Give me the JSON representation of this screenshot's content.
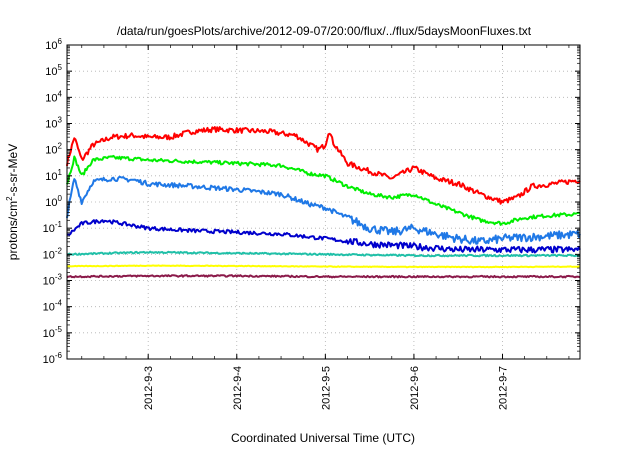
{
  "chart_data": {
    "type": "line",
    "title": "/data/run/goesPlots/archive/2012-09-07/20:00/flux/../flux/5daysMoonFluxes.txt",
    "xlabel": "Coordinated Universal Time (UTC)",
    "ylabel": {
      "base": "protons/cm",
      "sup": "2",
      "rest": "-s-sr-MeV"
    },
    "yscale": "log",
    "ylim_exp": [
      -6,
      6
    ],
    "ytick_exps": [
      -6,
      -5,
      -4,
      -3,
      -2,
      -1,
      0,
      1,
      2,
      3,
      4,
      5,
      6
    ],
    "xlim": [
      "2012-09-02T02:00",
      "2012-09-07T21:00"
    ],
    "xticks": [
      {
        "t": "2012-09-03T00:00",
        "label": "2012-9-3"
      },
      {
        "t": "2012-09-04T00:00",
        "label": "2012-9-4"
      },
      {
        "t": "2012-09-05T00:00",
        "label": "2012-9-5"
      },
      {
        "t": "2012-09-06T00:00",
        "label": "2012-9-6"
      },
      {
        "t": "2012-09-07T00:00",
        "label": "2012-9-7"
      }
    ],
    "grid": true,
    "series": [
      {
        "color": "#ff0000",
        "points": [
          [
            "2012-09-02T02:00",
            30
          ],
          [
            "2012-09-02T04:00",
            300
          ],
          [
            "2012-09-02T06:00",
            40
          ],
          [
            "2012-09-02T09:00",
            150
          ],
          [
            "2012-09-02T14:00",
            300
          ],
          [
            "2012-09-02T20:00",
            350
          ],
          [
            "2012-09-03T00:00",
            300
          ],
          [
            "2012-09-03T06:00",
            300
          ],
          [
            "2012-09-03T12:00",
            500
          ],
          [
            "2012-09-03T18:00",
            600
          ],
          [
            "2012-09-04T00:00",
            550
          ],
          [
            "2012-09-04T08:00",
            500
          ],
          [
            "2012-09-04T16:00",
            350
          ],
          [
            "2012-09-04T22:00",
            100
          ],
          [
            "2012-09-05T00:00",
            150
          ],
          [
            "2012-09-05T01:00",
            600
          ],
          [
            "2012-09-05T02:00",
            200
          ],
          [
            "2012-09-05T06:00",
            30
          ],
          [
            "2012-09-05T12:00",
            15
          ],
          [
            "2012-09-05T18:00",
            8
          ],
          [
            "2012-09-06T00:00",
            20
          ],
          [
            "2012-09-06T06:00",
            8
          ],
          [
            "2012-09-06T12:00",
            5
          ],
          [
            "2012-09-06T18:00",
            2
          ],
          [
            "2012-09-07T00:00",
            1
          ],
          [
            "2012-09-07T04:00",
            1.5
          ],
          [
            "2012-09-07T08:00",
            4
          ],
          [
            "2012-09-07T14:00",
            5
          ],
          [
            "2012-09-07T21:00",
            7
          ]
        ]
      },
      {
        "color": "#00ee00",
        "points": [
          [
            "2012-09-02T02:00",
            5
          ],
          [
            "2012-09-02T04:00",
            50
          ],
          [
            "2012-09-02T06:00",
            10
          ],
          [
            "2012-09-02T09:00",
            40
          ],
          [
            "2012-09-02T14:00",
            50
          ],
          [
            "2012-09-02T20:00",
            45
          ],
          [
            "2012-09-03T00:00",
            40
          ],
          [
            "2012-09-03T12:00",
            35
          ],
          [
            "2012-09-04T00:00",
            30
          ],
          [
            "2012-09-04T12:00",
            25
          ],
          [
            "2012-09-04T20:00",
            12
          ],
          [
            "2012-09-05T00:00",
            10
          ],
          [
            "2012-09-05T06:00",
            4
          ],
          [
            "2012-09-05T12:00",
            2
          ],
          [
            "2012-09-05T18:00",
            1.5
          ],
          [
            "2012-09-06T00:00",
            2
          ],
          [
            "2012-09-06T06:00",
            0.8
          ],
          [
            "2012-09-06T12:00",
            0.4
          ],
          [
            "2012-09-06T18:00",
            0.2
          ],
          [
            "2012-09-07T00:00",
            0.15
          ],
          [
            "2012-09-07T06:00",
            0.25
          ],
          [
            "2012-09-07T12:00",
            0.3
          ],
          [
            "2012-09-07T21:00",
            0.35
          ]
        ]
      },
      {
        "color": "#1f78e6",
        "points": [
          [
            "2012-09-02T02:00",
            0.3
          ],
          [
            "2012-09-02T04:00",
            8
          ],
          [
            "2012-09-02T06:00",
            1
          ],
          [
            "2012-09-02T09:00",
            6
          ],
          [
            "2012-09-02T14:00",
            8
          ],
          [
            "2012-09-02T20:00",
            7
          ],
          [
            "2012-09-03T00:00",
            5
          ],
          [
            "2012-09-03T12:00",
            4
          ],
          [
            "2012-09-04T00:00",
            3
          ],
          [
            "2012-09-04T12:00",
            2
          ],
          [
            "2012-09-04T20:00",
            0.8
          ],
          [
            "2012-09-05T00:00",
            0.6
          ],
          [
            "2012-09-05T06:00",
            0.25
          ],
          [
            "2012-09-05T12:00",
            0.1
          ],
          [
            "2012-09-05T18:00",
            0.07
          ],
          [
            "2012-09-06T00:00",
            0.1
          ],
          [
            "2012-09-06T06:00",
            0.06
          ],
          [
            "2012-09-06T12:00",
            0.04
          ],
          [
            "2012-09-06T18:00",
            0.03
          ],
          [
            "2012-09-07T00:00",
            0.04
          ],
          [
            "2012-09-07T12:00",
            0.05
          ],
          [
            "2012-09-07T21:00",
            0.06
          ]
        ]
      },
      {
        "color": "#0000cc",
        "points": [
          [
            "2012-09-02T02:00",
            0.05
          ],
          [
            "2012-09-02T06:00",
            0.15
          ],
          [
            "2012-09-02T12:00",
            0.2
          ],
          [
            "2012-09-03T00:00",
            0.1
          ],
          [
            "2012-09-03T12:00",
            0.08
          ],
          [
            "2012-09-04T00:00",
            0.07
          ],
          [
            "2012-09-04T12:00",
            0.06
          ],
          [
            "2012-09-05T00:00",
            0.04
          ],
          [
            "2012-09-05T12:00",
            0.025
          ],
          [
            "2012-09-06T00:00",
            0.02
          ],
          [
            "2012-09-06T12:00",
            0.015
          ],
          [
            "2012-09-07T00:00",
            0.015
          ],
          [
            "2012-09-07T21:00",
            0.015
          ]
        ]
      },
      {
        "color": "#20c0a8",
        "points": [
          [
            "2012-09-02T02:00",
            0.01
          ],
          [
            "2012-09-03T00:00",
            0.012
          ],
          [
            "2012-09-04T00:00",
            0.011
          ],
          [
            "2012-09-05T00:00",
            0.01
          ],
          [
            "2012-09-06T00:00",
            0.009
          ],
          [
            "2012-09-07T00:00",
            0.009
          ],
          [
            "2012-09-07T21:00",
            0.009
          ]
        ]
      },
      {
        "color": "#ffff00",
        "points": [
          [
            "2012-09-02T02:00",
            0.0035
          ],
          [
            "2012-09-03T00:00",
            0.0037
          ],
          [
            "2012-09-04T00:00",
            0.0036
          ],
          [
            "2012-09-05T00:00",
            0.0034
          ],
          [
            "2012-09-06T00:00",
            0.0033
          ],
          [
            "2012-09-07T00:00",
            0.0033
          ],
          [
            "2012-09-07T21:00",
            0.0034
          ]
        ]
      },
      {
        "color": "#8b1a4a",
        "points": [
          [
            "2012-09-02T02:00",
            0.0014
          ],
          [
            "2012-09-03T00:00",
            0.0015
          ],
          [
            "2012-09-04T00:00",
            0.0015
          ],
          [
            "2012-09-05T00:00",
            0.0014
          ],
          [
            "2012-09-06T00:00",
            0.0014
          ],
          [
            "2012-09-07T00:00",
            0.0014
          ],
          [
            "2012-09-07T21:00",
            0.0014
          ]
        ]
      }
    ]
  }
}
